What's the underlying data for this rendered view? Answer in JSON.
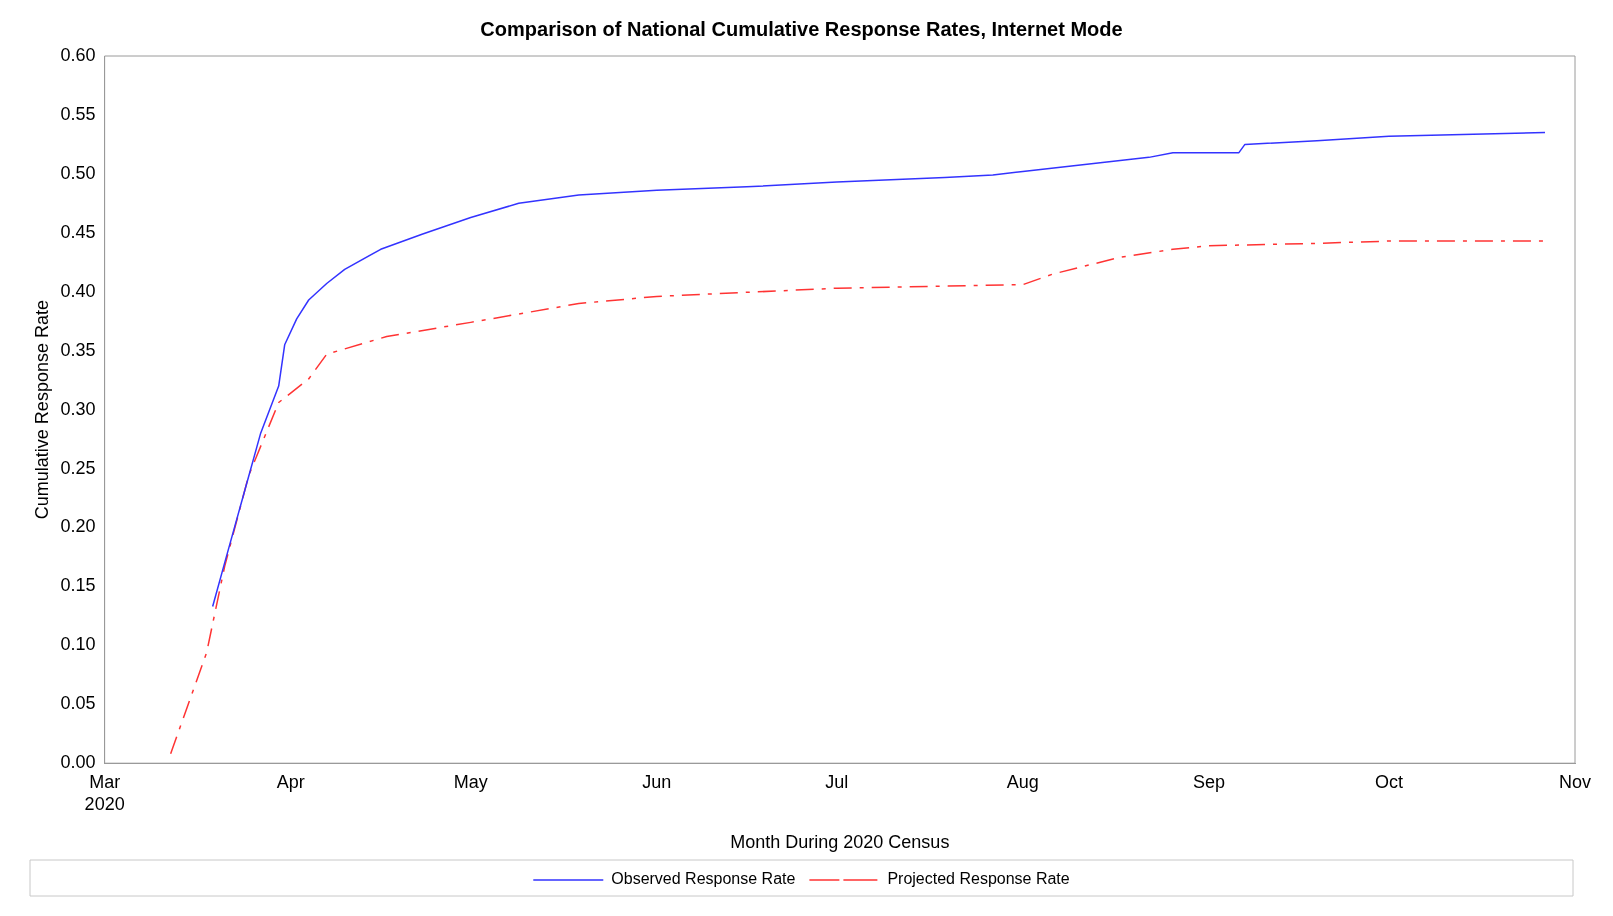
{
  "chart_data": {
    "type": "line",
    "title": "Comparison of National Cumulative Response Rates, Internet Mode",
    "xlabel": "Month During 2020 Census",
    "ylabel": "Cumulative Response Rate",
    "xlim": [
      "2020-03-01",
      "2020-11-01"
    ],
    "xticks": [
      {
        "value": "2020-03-01",
        "label": "Mar\n2020"
      },
      {
        "value": "2020-04-01",
        "label": "Apr"
      },
      {
        "value": "2020-05-01",
        "label": "May"
      },
      {
        "value": "2020-06-01",
        "label": "Jun"
      },
      {
        "value": "2020-07-01",
        "label": "Jul"
      },
      {
        "value": "2020-08-01",
        "label": "Aug"
      },
      {
        "value": "2020-09-01",
        "label": "Sep"
      },
      {
        "value": "2020-10-01",
        "label": "Oct"
      },
      {
        "value": "2020-11-01",
        "label": "Nov"
      }
    ],
    "ylim": [
      0,
      0.6
    ],
    "yticks": [
      {
        "value": 0,
        "label": "0.00"
      },
      {
        "value": 0.05,
        "label": "0.05"
      },
      {
        "value": 0.1,
        "label": "0.10"
      },
      {
        "value": 0.15,
        "label": "0.15"
      },
      {
        "value": 0.2,
        "label": "0.20"
      },
      {
        "value": 0.25,
        "label": "0.25"
      },
      {
        "value": 0.3,
        "label": "0.30"
      },
      {
        "value": 0.35,
        "label": "0.35"
      },
      {
        "value": 0.4,
        "label": "0.40"
      },
      {
        "value": 0.45,
        "label": "0.45"
      },
      {
        "value": 0.5,
        "label": "0.50"
      },
      {
        "value": 0.55,
        "label": "0.55"
      },
      {
        "value": 0.6,
        "label": "0.60"
      }
    ],
    "grid": false,
    "legend": "bottom",
    "marker": "none",
    "series": [
      {
        "name": "Observed Response Rate",
        "color": "#3333ff",
        "line_style": "solid",
        "x": [
          "2020-03-19",
          "2020-03-21",
          "2020-03-24",
          "2020-03-27",
          "2020-03-30",
          "2020-03-31",
          "2020-04-02",
          "2020-04-04",
          "2020-04-07",
          "2020-04-10",
          "2020-04-16",
          "2020-04-23",
          "2020-04-27",
          "2020-05-01",
          "2020-05-09",
          "2020-05-19",
          "2020-06-01",
          "2020-06-16",
          "2020-07-01",
          "2020-07-19",
          "2020-07-27",
          "2020-08-01",
          "2020-08-15",
          "2020-08-22",
          "2020-08-26",
          "2020-09-06",
          "2020-09-07",
          "2020-09-19",
          "2020-10-01",
          "2020-10-27"
        ],
        "values": [
          0.133,
          0.17,
          0.225,
          0.28,
          0.32,
          0.355,
          0.377,
          0.393,
          0.407,
          0.419,
          0.436,
          0.449,
          0.456,
          0.463,
          0.475,
          0.482,
          0.486,
          0.489,
          0.493,
          0.497,
          0.499,
          0.502,
          0.51,
          0.514,
          0.518,
          0.518,
          0.525,
          0.528,
          0.532,
          0.535
        ]
      },
      {
        "name": "Projected Response Rate",
        "color": "#ff3333",
        "line_style": "dashed",
        "x": [
          "2020-03-12",
          "2020-03-18",
          "2020-03-21",
          "2020-03-25",
          "2020-03-30",
          "2020-04-04",
          "2020-04-07",
          "2020-04-17",
          "2020-05-01",
          "2020-05-19",
          "2020-06-01",
          "2020-07-01",
          "2020-08-01",
          "2020-08-06",
          "2020-08-17",
          "2020-08-26",
          "2020-09-01",
          "2020-09-19",
          "2020-10-01",
          "2020-10-27"
        ],
        "values": [
          0.008,
          0.094,
          0.167,
          0.244,
          0.306,
          0.326,
          0.347,
          0.362,
          0.374,
          0.39,
          0.396,
          0.403,
          0.406,
          0.415,
          0.429,
          0.436,
          0.439,
          0.441,
          0.443,
          0.443
        ]
      }
    ]
  }
}
